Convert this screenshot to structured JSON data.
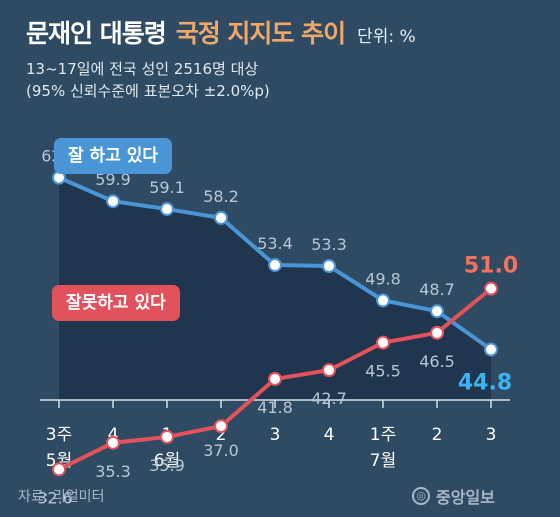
{
  "header": {
    "title_main": "문재인 대통령",
    "title_accent": "국정 지지도 추이",
    "unit": "단위: %",
    "subtitle_line1": "13~17일에 전국 성인 2516명 대상",
    "subtitle_line2": "(95% 신뢰수준에 표본오차 ±2.0%p)"
  },
  "footer": {
    "source": "자료: 리얼미터",
    "brand": "중앙일보"
  },
  "colors": {
    "approve": "#4a95d6",
    "disapprove": "#e2525c",
    "approve_last": "#3fb3f0",
    "disapprove_last": "#f2725c",
    "label": "#b9c7d4"
  },
  "chart_data": {
    "type": "line",
    "x": [
      "3주",
      "4",
      "1",
      "2",
      "3",
      "4",
      "1주",
      "2",
      "3"
    ],
    "x_sublabels": [
      "5월",
      "",
      "6월",
      "",
      "",
      "",
      "7월",
      "",
      ""
    ],
    "ylim": [
      25,
      70
    ],
    "grid": false,
    "series": [
      {
        "name": "잘 하고 있다",
        "values": [
          62.3,
          59.9,
          59.1,
          58.2,
          53.4,
          53.3,
          49.8,
          48.7,
          44.8
        ],
        "labels": [
          "62.3",
          "59.9",
          "59.1",
          "58.2",
          "53.4",
          "53.3",
          "49.8",
          "48.7",
          "44.8"
        ]
      },
      {
        "name": "잘못하고 있다",
        "values": [
          32.6,
          35.3,
          35.9,
          37.0,
          41.8,
          42.7,
          45.5,
          46.5,
          51.0
        ],
        "labels": [
          "32.6",
          "35.3",
          "35.9",
          "37.0",
          "41.8",
          "42.7",
          "45.5",
          "46.5",
          "51.0"
        ]
      }
    ]
  }
}
